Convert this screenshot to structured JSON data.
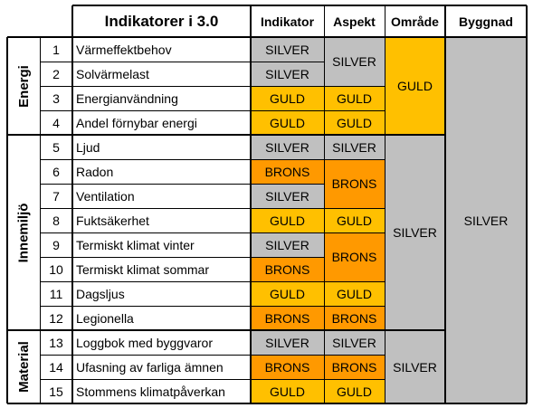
{
  "header": {
    "title": "Indikatorer i 3.0",
    "col_indikator": "Indikator",
    "col_aspekt": "Aspekt",
    "col_omrade": "Område",
    "col_byggnad": "Byggnad"
  },
  "groups": [
    {
      "label": "Energi",
      "omrade": "GULD"
    },
    {
      "label": "Innemiljö",
      "omrade": "SILVER"
    },
    {
      "label": "Material",
      "omrade": "SILVER"
    }
  ],
  "rows": [
    {
      "nr": "1",
      "name": "Värmeffektbehov",
      "indikator": "SILVER"
    },
    {
      "nr": "2",
      "name": "Solvärmelast",
      "indikator": "SILVER"
    },
    {
      "nr": "3",
      "name": "Energianvändning",
      "indikator": "GULD"
    },
    {
      "nr": "4",
      "name": "Andel förnybar energi",
      "indikator": "GULD"
    },
    {
      "nr": "5",
      "name": "Ljud",
      "indikator": "SILVER"
    },
    {
      "nr": "6",
      "name": "Radon",
      "indikator": "BRONS"
    },
    {
      "nr": "7",
      "name": "Ventilation",
      "indikator": "SILVER"
    },
    {
      "nr": "8",
      "name": "Fuktsäkerhet",
      "indikator": "GULD"
    },
    {
      "nr": "9",
      "name": "Termiskt klimat vinter",
      "indikator": "SILVER"
    },
    {
      "nr": "10",
      "name": "Termiskt klimat sommar",
      "indikator": "BRONS"
    },
    {
      "nr": "11",
      "name": "Dagsljus",
      "indikator": "GULD"
    },
    {
      "nr": "12",
      "name": "Legionella",
      "indikator": "BRONS"
    },
    {
      "nr": "13",
      "name": "Loggbok med byggvaror",
      "indikator": "SILVER"
    },
    {
      "nr": "14",
      "name": "Ufasning av farliga ämnen",
      "indikator": "BRONS"
    },
    {
      "nr": "15",
      "name": "Stommens klimatpåverkan",
      "indikator": "GULD"
    }
  ],
  "aspekt": [
    {
      "first_row": 1,
      "last_row": 2,
      "value": "SILVER"
    },
    {
      "first_row": 3,
      "last_row": 3,
      "value": "GULD"
    },
    {
      "first_row": 4,
      "last_row": 4,
      "value": "GULD"
    },
    {
      "first_row": 5,
      "last_row": 5,
      "value": "SILVER"
    },
    {
      "first_row": 6,
      "last_row": 7,
      "value": "BRONS"
    },
    {
      "first_row": 8,
      "last_row": 8,
      "value": "GULD"
    },
    {
      "first_row": 9,
      "last_row": 10,
      "value": "BRONS"
    },
    {
      "first_row": 11,
      "last_row": 11,
      "value": "GULD"
    },
    {
      "first_row": 12,
      "last_row": 12,
      "value": "BRONS"
    },
    {
      "first_row": 13,
      "last_row": 13,
      "value": "SILVER"
    },
    {
      "first_row": 14,
      "last_row": 14,
      "value": "BRONS"
    },
    {
      "first_row": 15,
      "last_row": 15,
      "value": "GULD"
    }
  ],
  "byggnad": "SILVER",
  "colors": {
    "SILVER": "#c0c0c0",
    "GULD": "#ffc000",
    "BRONS": "#ff9900",
    "white": "#ffffff"
  }
}
